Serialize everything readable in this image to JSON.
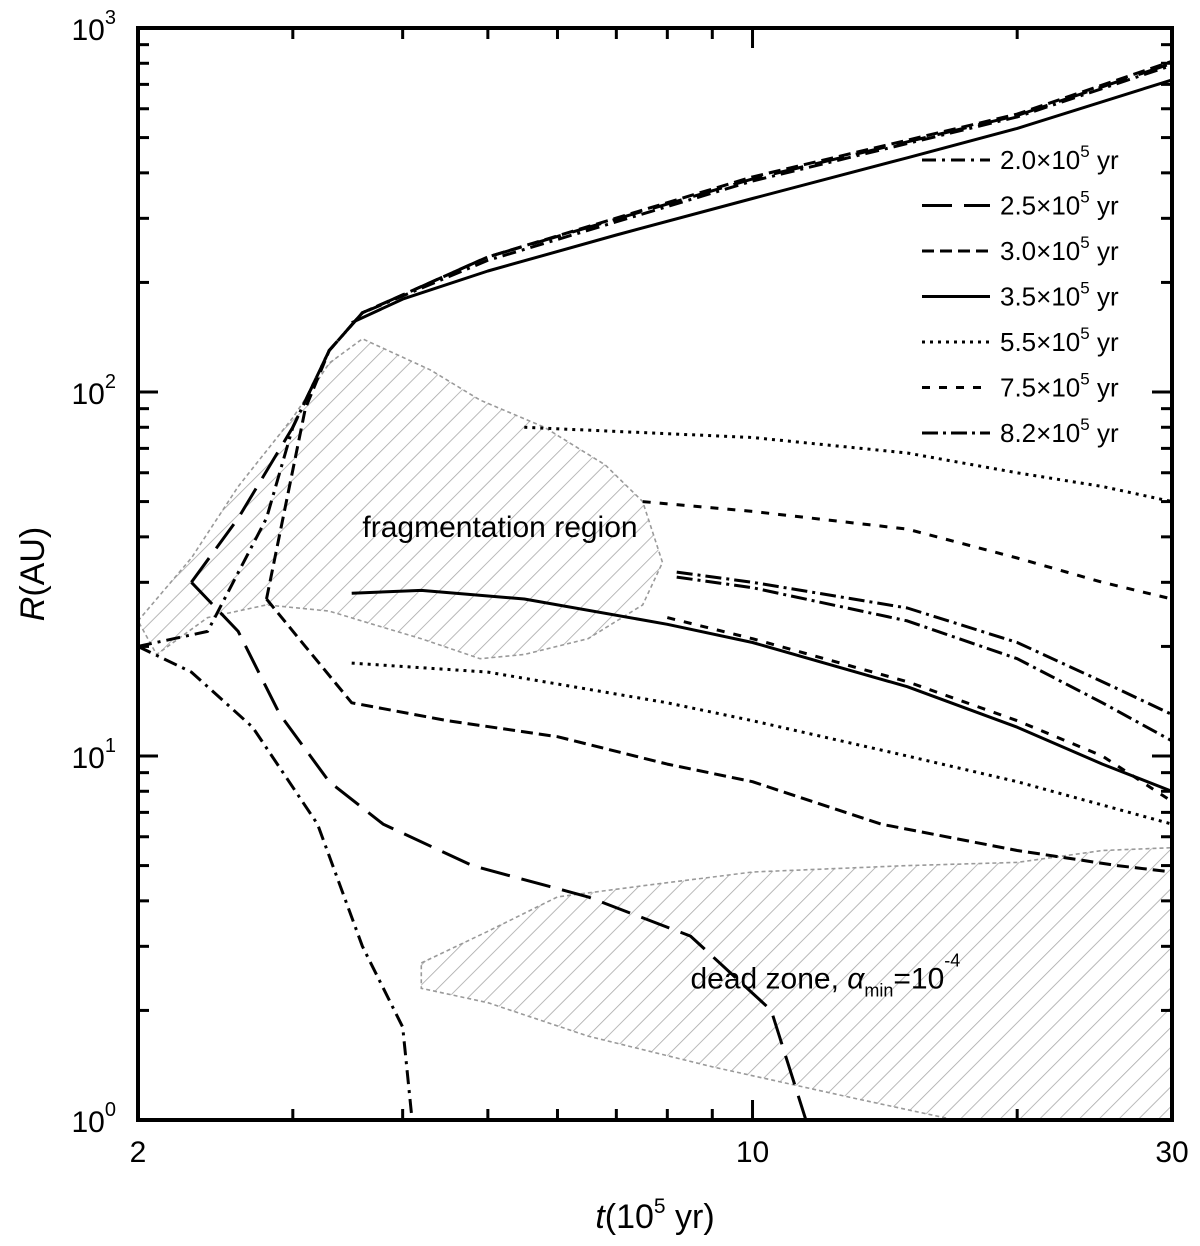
{
  "chart_data": {
    "type": "line",
    "x_scale": "log",
    "y_scale": "log",
    "xlim": [
      2,
      30
    ],
    "ylim": [
      1,
      1000
    ],
    "x_ticks": [
      {
        "value": 2,
        "label": "2"
      },
      {
        "value": 10,
        "label": "10"
      },
      {
        "value": 30,
        "label": "30"
      }
    ],
    "y_ticks": [
      {
        "value": 1,
        "base": "10",
        "exp": "0"
      },
      {
        "value": 10,
        "base": "10",
        "exp": "1"
      },
      {
        "value": 100,
        "base": "10",
        "exp": "2"
      },
      {
        "value": 1000,
        "base": "10",
        "exp": "3"
      }
    ],
    "xlabel": {
      "var": "t",
      "open": "(10",
      "exp": "5",
      "close": " yr)"
    },
    "ylabel": {
      "var": "R",
      "rest": "(AU)"
    },
    "grid": false,
    "legend_position": "top-right",
    "series": [
      {
        "mantissa": "2.0",
        "dash": "14,6,3,6",
        "outer": [
          [
            2.0,
            20
          ],
          [
            2.4,
            22
          ],
          [
            2.8,
            45
          ],
          [
            3.0,
            80
          ],
          [
            3.3,
            130
          ],
          [
            3.6,
            165
          ],
          [
            5,
            230
          ],
          [
            10,
            380
          ],
          [
            20,
            570
          ],
          [
            30,
            790
          ]
        ],
        "inner": [
          [
            2.0,
            20
          ],
          [
            2.3,
            17
          ],
          [
            2.7,
            12
          ],
          [
            3.2,
            6.5
          ],
          [
            3.6,
            3.0
          ],
          [
            4.0,
            1.8
          ],
          [
            4.1,
            1.0
          ]
        ]
      },
      {
        "mantissa": "2.5",
        "dash": "30,12",
        "outer": [
          [
            2.3,
            30
          ],
          [
            2.6,
            45
          ],
          [
            3.0,
            80
          ],
          [
            3.3,
            130
          ],
          [
            3.6,
            165
          ],
          [
            5,
            235
          ],
          [
            10,
            385
          ],
          [
            20,
            575
          ],
          [
            30,
            800
          ]
        ],
        "inner": [
          [
            2.3,
            30
          ],
          [
            2.6,
            22
          ],
          [
            2.9,
            13
          ],
          [
            3.3,
            8.5
          ],
          [
            3.8,
            6.5
          ],
          [
            4.8,
            5.0
          ],
          [
            6.5,
            4.1
          ],
          [
            8.5,
            3.2
          ],
          [
            10.5,
            2.0
          ],
          [
            11.5,
            1.0
          ]
        ]
      },
      {
        "mantissa": "3.0",
        "dash": "12,6",
        "outer": [
          [
            2.8,
            27
          ],
          [
            3.1,
            90
          ],
          [
            3.3,
            130
          ],
          [
            3.6,
            165
          ],
          [
            5,
            235
          ],
          [
            10,
            390
          ],
          [
            20,
            580
          ],
          [
            30,
            810
          ]
        ],
        "inner": [
          [
            2.8,
            27
          ],
          [
            3.1,
            20
          ],
          [
            3.5,
            14
          ],
          [
            4.5,
            12.5
          ],
          [
            6,
            11.3
          ],
          [
            8,
            9.5
          ],
          [
            10,
            8.5
          ],
          [
            14,
            6.5
          ],
          [
            20,
            5.5
          ],
          [
            26,
            5.0
          ],
          [
            30,
            4.8
          ]
        ]
      },
      {
        "mantissa": "3.5",
        "dash": "",
        "outer": [
          [
            3.5,
            155
          ],
          [
            4,
            180
          ],
          [
            5,
            215
          ],
          [
            7,
            270
          ],
          [
            10,
            340
          ],
          [
            15,
            440
          ],
          [
            20,
            530
          ],
          [
            30,
            720
          ]
        ],
        "inner": [
          [
            3.5,
            28
          ],
          [
            4.2,
            28.5
          ],
          [
            5.5,
            27
          ],
          [
            8,
            23
          ],
          [
            10,
            20.5
          ],
          [
            15,
            15.5
          ],
          [
            20,
            12
          ],
          [
            25,
            9.5
          ],
          [
            30,
            8
          ]
        ]
      },
      {
        "mantissa": "5.5",
        "dash": "3,5",
        "outer": [
          [
            5.5,
            80
          ],
          [
            10,
            75
          ],
          [
            15,
            68
          ],
          [
            20,
            60
          ],
          [
            25,
            55
          ],
          [
            30,
            50
          ]
        ],
        "inner": [
          [
            3.5,
            18
          ],
          [
            5,
            17
          ],
          [
            8,
            14
          ],
          [
            10,
            12.5
          ],
          [
            15,
            10
          ],
          [
            20,
            8.5
          ],
          [
            30,
            6.5
          ]
        ]
      },
      {
        "mantissa": "7.5",
        "dash": "8,9",
        "outer": [
          [
            7.5,
            50
          ],
          [
            10,
            47
          ],
          [
            15,
            42
          ],
          [
            20,
            35
          ],
          [
            25,
            30
          ],
          [
            30,
            27
          ]
        ],
        "inner": [
          [
            8,
            24
          ],
          [
            10,
            21
          ],
          [
            15,
            16
          ],
          [
            20,
            12.5
          ],
          [
            25,
            10
          ],
          [
            30,
            7.5
          ]
        ]
      },
      {
        "mantissa": "8.2",
        "dash": "16,5,3,5",
        "outer": [
          [
            8.2,
            32
          ],
          [
            10,
            30
          ],
          [
            15,
            25.5
          ],
          [
            20,
            20.5
          ],
          [
            25,
            16
          ],
          [
            30,
            13
          ]
        ],
        "inner": [
          [
            8.2,
            31
          ],
          [
            10,
            29
          ],
          [
            15,
            23.5
          ],
          [
            20,
            18.5
          ],
          [
            25,
            14
          ],
          [
            30,
            11
          ]
        ]
      }
    ],
    "regions": [
      {
        "name": "fragmentation region",
        "points": [
          [
            2.0,
            23.5
          ],
          [
            2.3,
            35
          ],
          [
            2.6,
            55
          ],
          [
            3.0,
            85
          ],
          [
            3.3,
            120
          ],
          [
            3.6,
            140
          ],
          [
            4.3,
            115
          ],
          [
            4.9,
            95
          ],
          [
            5.8,
            80
          ],
          [
            6.8,
            63
          ],
          [
            7.5,
            50
          ],
          [
            7.9,
            34
          ],
          [
            7.5,
            26
          ],
          [
            6.5,
            21
          ],
          [
            5.5,
            19
          ],
          [
            4.9,
            18.5
          ],
          [
            4.2,
            21
          ],
          [
            3.7,
            23
          ],
          [
            3.3,
            25
          ],
          [
            2.8,
            26
          ],
          [
            2.4,
            24
          ],
          [
            2.1,
            19
          ]
        ]
      },
      {
        "name": "dead zone",
        "points": [
          [
            4.2,
            2.7
          ],
          [
            5.0,
            3.3
          ],
          [
            6.0,
            4.1
          ],
          [
            7.5,
            4.4
          ],
          [
            10,
            4.8
          ],
          [
            15,
            5.0
          ],
          [
            20,
            5.1
          ],
          [
            25,
            5.5
          ],
          [
            30,
            5.6
          ],
          [
            30,
            1.0
          ],
          [
            17,
            1.0
          ],
          [
            13,
            1.15
          ],
          [
            9,
            1.4
          ],
          [
            6.5,
            1.7
          ],
          [
            5,
            2.1
          ],
          [
            4.2,
            2.3
          ]
        ]
      }
    ],
    "annotations": [
      {
        "parts": [
          {
            "text": "fragmentation region",
            "sub": ""
          }
        ],
        "x": 3.6,
        "y": 40
      },
      {
        "parts": [
          {
            "text": "dead zone, α",
            "sub": "min"
          },
          {
            "text": "=10",
            "sup": "-4"
          }
        ],
        "x": 8.5,
        "y": 2.3
      }
    ],
    "legend": {
      "times": "×10",
      "exp": "5",
      "unit": " yr"
    }
  }
}
